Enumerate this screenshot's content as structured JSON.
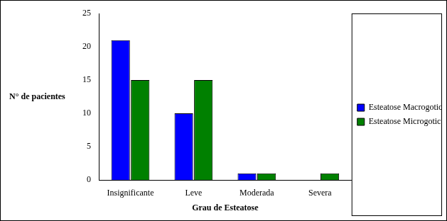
{
  "chart_data": {
    "type": "bar",
    "categories": [
      "Insignificante",
      "Leve",
      "Moderada",
      "Severa"
    ],
    "series": [
      {
        "name": "Esteatose Macrogoticular",
        "color": "#0000ff",
        "values": [
          21,
          10,
          1,
          0
        ]
      },
      {
        "name": "Esteatose Microgoticular",
        "color": "#008000",
        "values": [
          15,
          15,
          1,
          1
        ]
      }
    ],
    "x_label": "Grau de Esteatose",
    "y_label": "N° de pacientes",
    "ylim": [
      0,
      25
    ],
    "yticks": [
      0,
      5,
      10,
      15,
      20,
      25
    ],
    "grid": false,
    "legend": "right"
  }
}
